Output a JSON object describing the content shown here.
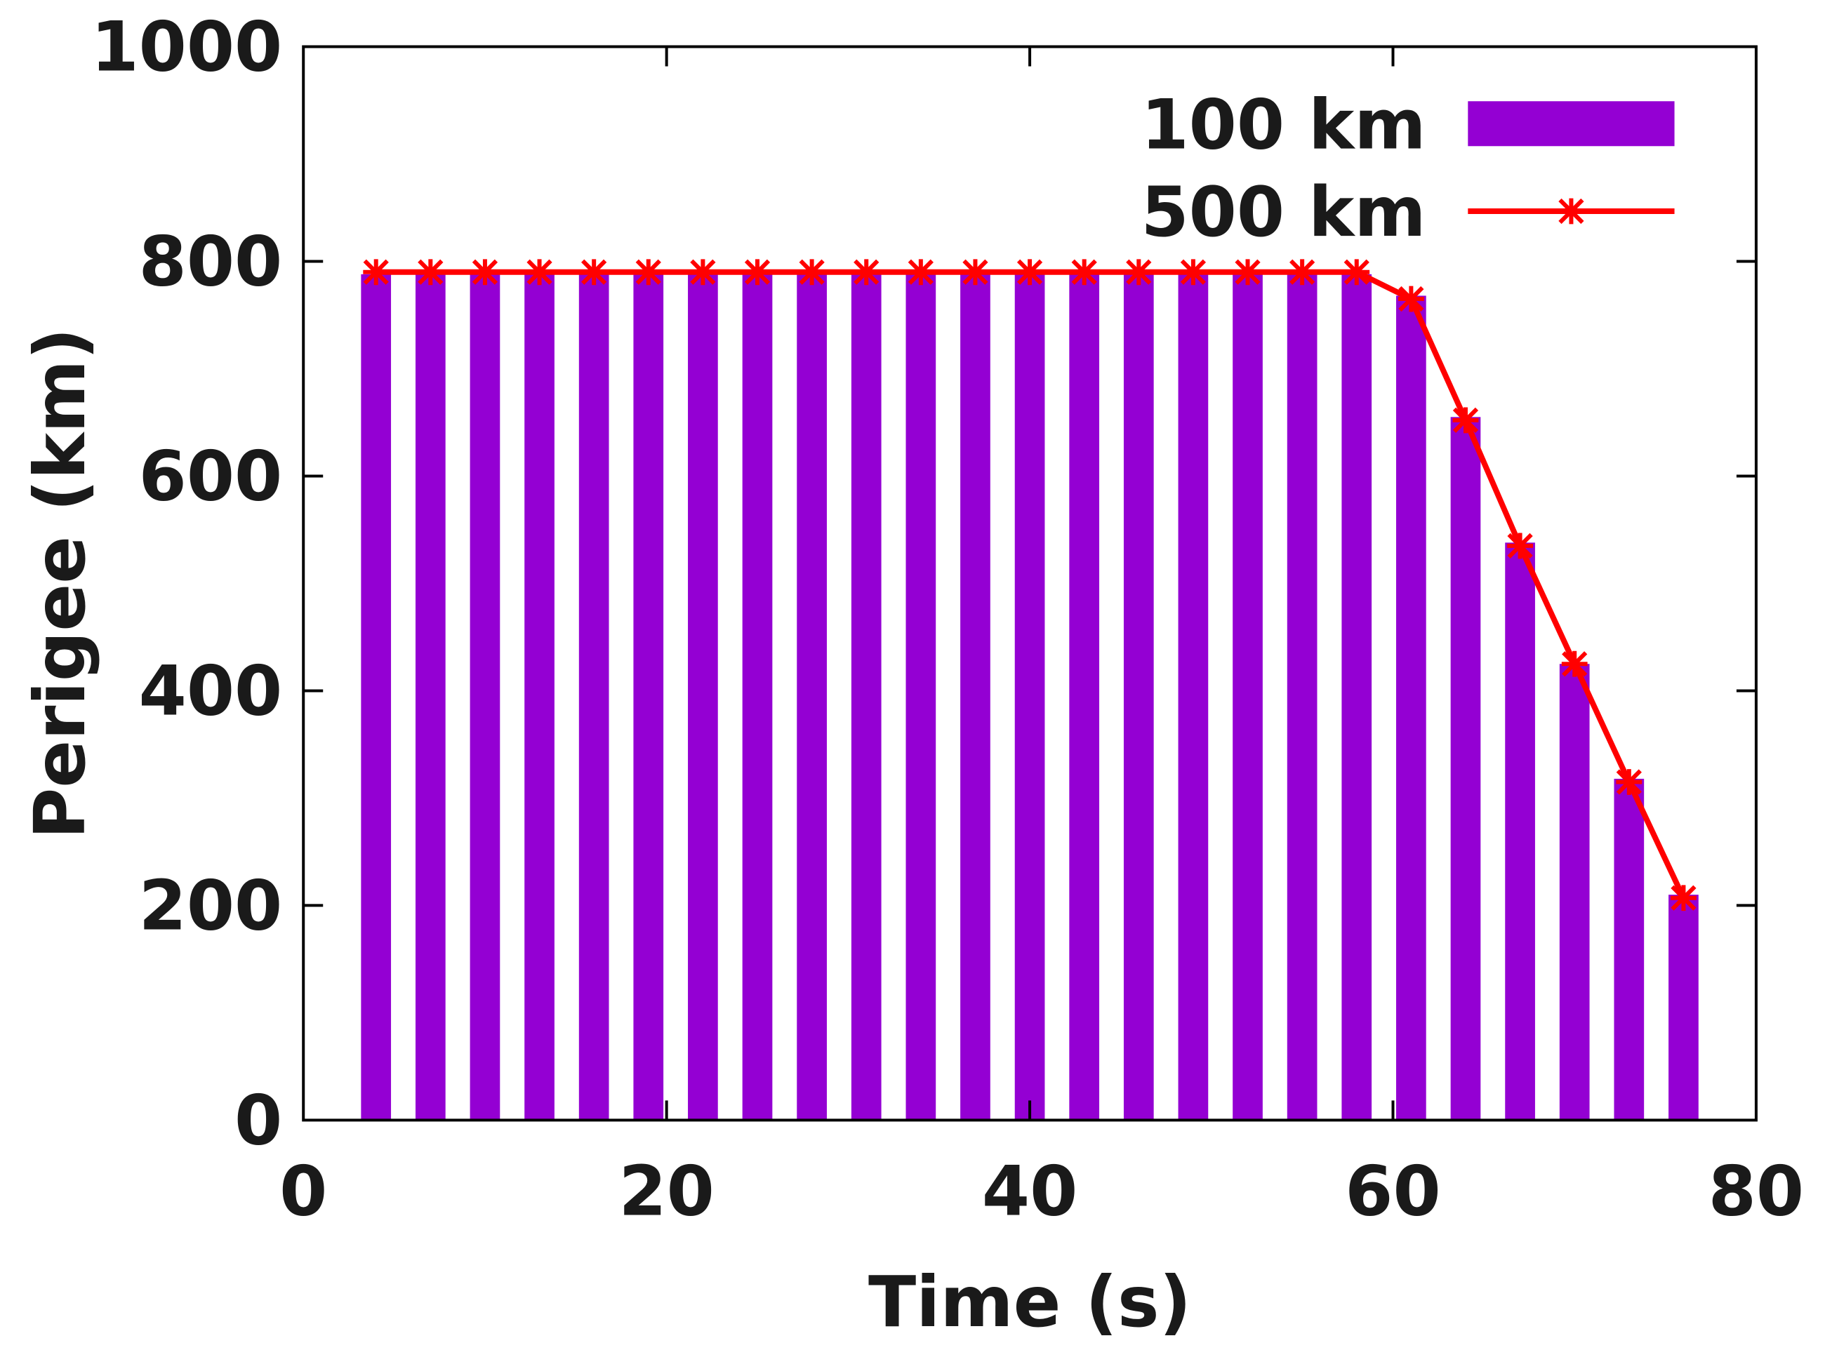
{
  "chart_data": {
    "type": "bar",
    "title": "",
    "xlabel": "Time (s)",
    "ylabel": "Perigee (km)",
    "xlim": [
      0,
      80
    ],
    "ylim": [
      0,
      1000
    ],
    "xticks": [
      0,
      20,
      40,
      60,
      80
    ],
    "yticks": [
      0,
      200,
      400,
      600,
      800,
      1000
    ],
    "grid": false,
    "legend_position": "top-right",
    "series": [
      {
        "name": "100 km",
        "kind": "bar",
        "color": "#9400D3",
        "x": [
          4,
          7,
          10,
          13,
          16,
          19,
          22,
          25,
          28,
          31,
          34,
          37,
          40,
          43,
          46,
          49,
          52,
          55,
          58,
          61,
          64,
          67,
          70,
          73,
          76,
          79
        ],
        "values": [
          788,
          788,
          788,
          788,
          788,
          788,
          788,
          788,
          788,
          788,
          788,
          788,
          788,
          788,
          788,
          788,
          788,
          788,
          788,
          768,
          655,
          538,
          425,
          318,
          210,
          0
        ]
      },
      {
        "name": "500 km",
        "kind": "line",
        "marker": "star",
        "color": "#FF0000",
        "x": [
          4,
          7,
          10,
          13,
          16,
          19,
          22,
          25,
          28,
          31,
          34,
          37,
          40,
          43,
          46,
          49,
          52,
          55,
          58,
          61,
          64,
          67,
          70,
          73,
          76
        ],
        "values": [
          790,
          790,
          790,
          790,
          790,
          790,
          790,
          790,
          790,
          790,
          790,
          790,
          790,
          790,
          790,
          790,
          790,
          790,
          790,
          765,
          652,
          535,
          425,
          315,
          207
        ]
      }
    ]
  }
}
